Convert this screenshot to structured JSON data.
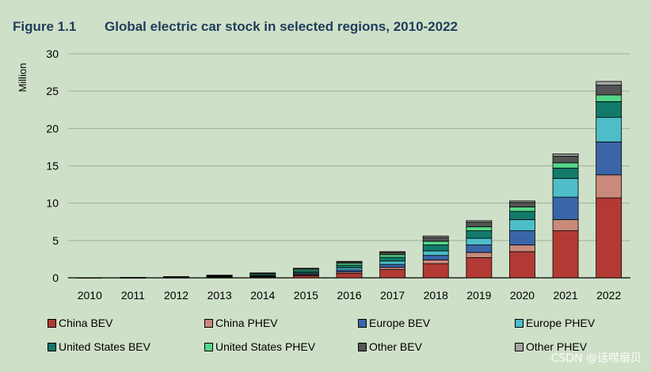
{
  "figure": {
    "label": "Figure 1.1",
    "title": "Global electric car stock in selected regions, 2010-2022"
  },
  "watermark": "CSDN @话唠扇贝",
  "chart_data": {
    "type": "bar",
    "stacked": true,
    "ylabel": "Million",
    "ylim": [
      0,
      30
    ],
    "yticks": [
      0,
      5,
      10,
      15,
      20,
      25,
      30
    ],
    "grid": true,
    "legend_position": "bottom",
    "categories": [
      "2010",
      "2011",
      "2012",
      "2013",
      "2014",
      "2015",
      "2016",
      "2017",
      "2018",
      "2019",
      "2020",
      "2021",
      "2022"
    ],
    "series": [
      {
        "name": "China BEV",
        "color": "#b33a34",
        "values": [
          0.01,
          0.02,
          0.03,
          0.05,
          0.1,
          0.3,
          0.6,
          1.1,
          1.9,
          2.7,
          3.5,
          6.3,
          10.7
        ]
      },
      {
        "name": "China PHEV",
        "color": "#c98a7b",
        "values": [
          0.0,
          0.0,
          0.01,
          0.02,
          0.04,
          0.1,
          0.2,
          0.3,
          0.5,
          0.7,
          0.9,
          1.5,
          3.1
        ]
      },
      {
        "name": "Europe BEV",
        "color": "#3a66a8",
        "values": [
          0.0,
          0.01,
          0.02,
          0.04,
          0.08,
          0.15,
          0.25,
          0.4,
          0.6,
          1.0,
          1.9,
          3.0,
          4.4
        ]
      },
      {
        "name": "Europe PHEV",
        "color": "#4dbdc8",
        "values": [
          0.0,
          0.0,
          0.01,
          0.03,
          0.06,
          0.15,
          0.3,
          0.45,
          0.6,
          0.9,
          1.5,
          2.5,
          3.3
        ]
      },
      {
        "name": "United States BEV",
        "color": "#127a6a",
        "values": [
          0.0,
          0.02,
          0.04,
          0.1,
          0.17,
          0.25,
          0.35,
          0.5,
          0.8,
          1.0,
          1.1,
          1.4,
          2.1
        ]
      },
      {
        "name": "United States PHEV",
        "color": "#55d68a",
        "values": [
          0.0,
          0.01,
          0.04,
          0.08,
          0.15,
          0.2,
          0.25,
          0.35,
          0.5,
          0.55,
          0.6,
          0.7,
          0.9
        ]
      },
      {
        "name": "Other BEV",
        "color": "#545454",
        "values": [
          0.0,
          0.0,
          0.01,
          0.02,
          0.04,
          0.1,
          0.2,
          0.3,
          0.5,
          0.6,
          0.6,
          0.9,
          1.3
        ]
      },
      {
        "name": "Other PHEV",
        "color": "#a4a4a4",
        "values": [
          0.0,
          0.0,
          0.0,
          0.01,
          0.02,
          0.03,
          0.05,
          0.1,
          0.2,
          0.2,
          0.2,
          0.3,
          0.5
        ]
      }
    ]
  }
}
